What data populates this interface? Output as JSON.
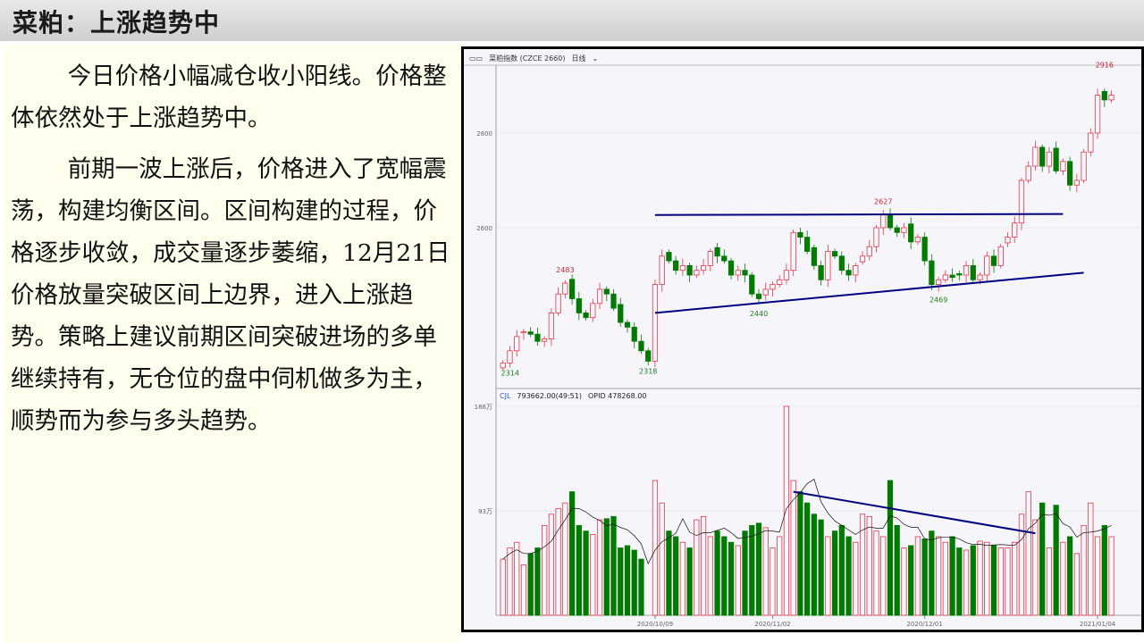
{
  "slide": {
    "title": "菜粕：上涨趋势中",
    "paragraphs": [
      "今日价格小幅减仓收小阳线。价格整体依然处于上涨趋势中。",
      "前期一波上涨后，价格进入了宽幅震荡，构建均衡区间。区间构建的过程，价格逐步收敛，成交量逐步萎缩，12月21日价格放量突破区间上边界，进入上涨趋势。策略上建议前期区间突破进场的多单继续持有，无仓位的盘中伺机做多为主，顺势而为参与多头趋势。"
    ]
  },
  "chart_header": {
    "symbol": "菜粕指数 (CZCE 2660)",
    "period": "日线",
    "indicator": "CJL",
    "volume_readout": "793662.00(49:51)",
    "opid_readout": "OPID 478268.00"
  },
  "colors": {
    "up": "#e8344a",
    "down": "#007a00",
    "trendline": "#000080",
    "grid": "#c8c8d0"
  },
  "chart_data": {
    "type": "candlestick",
    "price_axis": {
      "ticks": [
        "2600",
        "2800"
      ],
      "ylim": [
        2300,
        2960
      ]
    },
    "volume_axis": {
      "ticks": [
        "93万",
        "186万"
      ],
      "ylim": [
        0,
        186
      ]
    },
    "date_ticks": [
      {
        "label": "2020/10/09",
        "index": 22
      },
      {
        "label": "2020/11/02",
        "index": 39
      },
      {
        "label": "2020/12/01",
        "index": 61
      },
      {
        "label": "2021/01/04",
        "index": 86
      }
    ],
    "closes": [
      2314,
      2340,
      2370,
      2380,
      2375,
      2360,
      2365,
      2420,
      2460,
      2483,
      2450,
      2420,
      2410,
      2440,
      2470,
      2460,
      2430,
      2400,
      2390,
      2360,
      2340,
      2318,
      2480,
      2540,
      2530,
      2510,
      2520,
      2500,
      2510,
      2520,
      2550,
      2540,
      2530,
      2500,
      2510,
      2500,
      2460,
      2450,
      2470,
      2480,
      2490,
      2510,
      2590,
      2580,
      2550,
      2520,
      2490,
      2550,
      2540,
      2510,
      2500,
      2520,
      2540,
      2560,
      2600,
      2627,
      2600,
      2590,
      2600,
      2570,
      2580,
      2530,
      2480,
      2490,
      2500,
      2495,
      2500,
      2520,
      2490,
      2500,
      2540,
      2520,
      2560,
      2580,
      2610,
      2700,
      2730,
      2770,
      2730,
      2760,
      2720,
      2740,
      2690,
      2700,
      2760,
      2800,
      2880,
      2870,
      2880
    ],
    "volumes_wan": [
      50,
      60,
      65,
      45,
      55,
      60,
      80,
      90,
      95,
      100,
      110,
      80,
      75,
      72,
      85,
      86,
      88,
      60,
      62,
      58,
      50,
      0,
      120,
      100,
      75,
      70,
      65,
      60,
      85,
      88,
      70,
      75,
      70,
      65,
      62,
      75,
      80,
      82,
      78,
      60,
      70,
      186,
      120,
      110,
      100,
      90,
      85,
      70,
      75,
      80,
      70,
      65,
      90,
      88,
      75,
      70,
      120,
      80,
      60,
      62,
      70,
      68,
      75,
      70,
      65,
      70,
      60,
      58,
      62,
      66,
      65,
      62,
      60,
      60,
      65,
      90,
      110,
      85,
      100,
      60,
      98,
      65,
      70,
      55,
      80,
      100,
      70,
      80,
      70
    ],
    "annotations": [
      {
        "label": "2314",
        "index": 0,
        "price": 2314,
        "kind": "low"
      },
      {
        "label": "2483",
        "index": 9,
        "price": 2483,
        "kind": "high"
      },
      {
        "label": "2318",
        "index": 21,
        "price": 2318,
        "kind": "low"
      },
      {
        "label": "2440",
        "index": 37,
        "price": 2440,
        "kind": "low"
      },
      {
        "label": "2627",
        "index": 55,
        "price": 2627,
        "kind": "high"
      },
      {
        "label": "2469",
        "index": 63,
        "price": 2469,
        "kind": "low"
      },
      {
        "label": "2916",
        "index": 87,
        "price": 2916,
        "kind": "high"
      }
    ]
  }
}
